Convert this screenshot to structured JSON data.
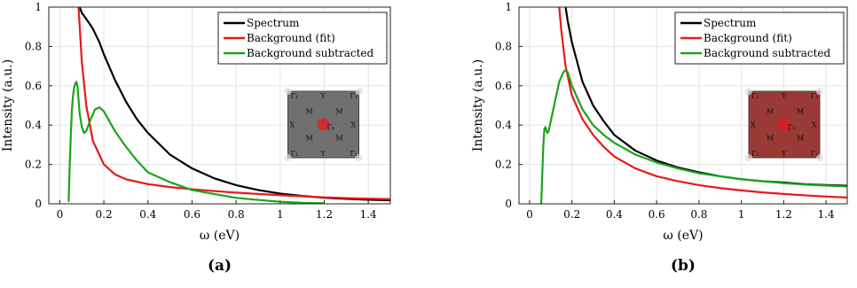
{
  "chart_data": [
    {
      "type": "line",
      "caption": "(a)",
      "xlabel": "ω (eV)",
      "ylabel": "Intensity (a.u.)",
      "xlim": [
        -0.05,
        1.5
      ],
      "ylim": [
        0,
        1
      ],
      "x_ticks": [
        "0",
        "0.2",
        "0.4",
        "0.6",
        "0.8",
        "1",
        "1.2",
        "1.4"
      ],
      "y_ticks": [
        "0",
        "0.2",
        "0.4",
        "0.6",
        "0.8",
        "1"
      ],
      "grid": true,
      "legend_position": "top-right",
      "series": [
        {
          "name": "Spectrum",
          "color": "#000000",
          "x": [
            0.09,
            0.1,
            0.12,
            0.15,
            0.18,
            0.2,
            0.25,
            0.3,
            0.35,
            0.4,
            0.5,
            0.6,
            0.7,
            0.8,
            0.9,
            1.0,
            1.1,
            1.2,
            1.3,
            1.4,
            1.5
          ],
          "y": [
            1.0,
            0.97,
            0.94,
            0.89,
            0.82,
            0.76,
            0.63,
            0.52,
            0.43,
            0.36,
            0.25,
            0.18,
            0.13,
            0.095,
            0.07,
            0.052,
            0.04,
            0.031,
            0.025,
            0.021,
            0.018
          ]
        },
        {
          "name": "Background (fit)",
          "color": "#e8181c",
          "x": [
            0.085,
            0.1,
            0.12,
            0.15,
            0.2,
            0.25,
            0.3,
            0.4,
            0.5,
            0.6,
            0.7,
            0.8,
            0.9,
            1.0,
            1.1,
            1.2,
            1.3,
            1.4,
            1.5
          ],
          "y": [
            1.0,
            0.72,
            0.5,
            0.32,
            0.2,
            0.15,
            0.125,
            0.1,
            0.085,
            0.074,
            0.065,
            0.057,
            0.05,
            0.044,
            0.038,
            0.033,
            0.029,
            0.026,
            0.024
          ]
        },
        {
          "name": "Background subtracted",
          "color": "#1aa51a",
          "x": [
            0.04,
            0.045,
            0.05,
            0.055,
            0.06,
            0.065,
            0.07,
            0.075,
            0.08,
            0.09,
            0.1,
            0.11,
            0.12,
            0.14,
            0.16,
            0.18,
            0.2,
            0.22,
            0.25,
            0.3,
            0.35,
            0.4,
            0.5,
            0.6,
            0.7,
            0.8,
            0.9,
            1.0,
            1.1,
            1.2
          ],
          "y": [
            0.01,
            0.2,
            0.35,
            0.48,
            0.55,
            0.59,
            0.61,
            0.62,
            0.6,
            0.46,
            0.39,
            0.36,
            0.37,
            0.43,
            0.48,
            0.49,
            0.47,
            0.43,
            0.37,
            0.29,
            0.22,
            0.16,
            0.11,
            0.07,
            0.05,
            0.03,
            0.02,
            0.01,
            0.005,
            0.003
          ]
        }
      ],
      "inset": {
        "fill": "#707070",
        "highlight": "#e8181c",
        "labels": [
          "Γ₁",
          "Y",
          "Γ₁",
          "M",
          "M",
          "X",
          "Γ₀",
          "X",
          "M",
          "M",
          "Γ₁",
          "Y",
          "Γ₁"
        ]
      }
    },
    {
      "type": "line",
      "caption": "(b)",
      "xlabel": "ω (eV)",
      "ylabel": "Intensity (a.u.)",
      "xlim": [
        -0.05,
        1.5
      ],
      "ylim": [
        0,
        1
      ],
      "x_ticks": [
        "0",
        "0.2",
        "0.4",
        "0.6",
        "0.8",
        "1",
        "1.2",
        "1.4"
      ],
      "y_ticks": [
        "0",
        "0.2",
        "0.4",
        "0.6",
        "0.8",
        "1"
      ],
      "grid": true,
      "legend_position": "top-right",
      "series": [
        {
          "name": "Spectrum",
          "color": "#000000",
          "x": [
            0.17,
            0.18,
            0.2,
            0.25,
            0.3,
            0.35,
            0.4,
            0.5,
            0.6,
            0.7,
            0.8,
            0.9,
            1.0,
            1.1,
            1.2,
            1.3,
            1.4,
            1.5
          ],
          "y": [
            1.0,
            0.93,
            0.82,
            0.62,
            0.5,
            0.42,
            0.35,
            0.27,
            0.22,
            0.185,
            0.16,
            0.14,
            0.125,
            0.115,
            0.108,
            0.1,
            0.095,
            0.092
          ]
        },
        {
          "name": "Background (fit)",
          "color": "#e8181c",
          "x": [
            0.14,
            0.15,
            0.17,
            0.2,
            0.25,
            0.3,
            0.35,
            0.4,
            0.5,
            0.6,
            0.7,
            0.8,
            0.9,
            1.0,
            1.1,
            1.2,
            1.3,
            1.4,
            1.5
          ],
          "y": [
            1.0,
            0.88,
            0.7,
            0.55,
            0.43,
            0.35,
            0.29,
            0.24,
            0.18,
            0.14,
            0.115,
            0.095,
            0.08,
            0.068,
            0.058,
            0.05,
            0.043,
            0.037,
            0.032
          ]
        },
        {
          "name": "Background subtracted",
          "color": "#1aa51a",
          "x": [
            0.055,
            0.06,
            0.065,
            0.07,
            0.075,
            0.08,
            0.085,
            0.09,
            0.1,
            0.12,
            0.14,
            0.16,
            0.17,
            0.18,
            0.2,
            0.25,
            0.3,
            0.35,
            0.4,
            0.5,
            0.6,
            0.7,
            0.8,
            0.9,
            1.0,
            1.1,
            1.2,
            1.3,
            1.4,
            1.5
          ],
          "y": [
            0.0,
            0.15,
            0.3,
            0.38,
            0.39,
            0.37,
            0.36,
            0.37,
            0.42,
            0.52,
            0.62,
            0.67,
            0.68,
            0.67,
            0.6,
            0.48,
            0.4,
            0.35,
            0.31,
            0.25,
            0.21,
            0.18,
            0.155,
            0.14,
            0.125,
            0.115,
            0.105,
            0.098,
            0.093,
            0.088
          ]
        }
      ],
      "inset": {
        "fill": "#9a3a34",
        "highlight": "#e8181c",
        "labels": [
          "Γ₁",
          "Y",
          "Γ₁",
          "M",
          "M",
          "X",
          "Γ₀",
          "X",
          "M",
          "M",
          "Γ₁",
          "Y",
          "Γ₁"
        ]
      }
    }
  ]
}
